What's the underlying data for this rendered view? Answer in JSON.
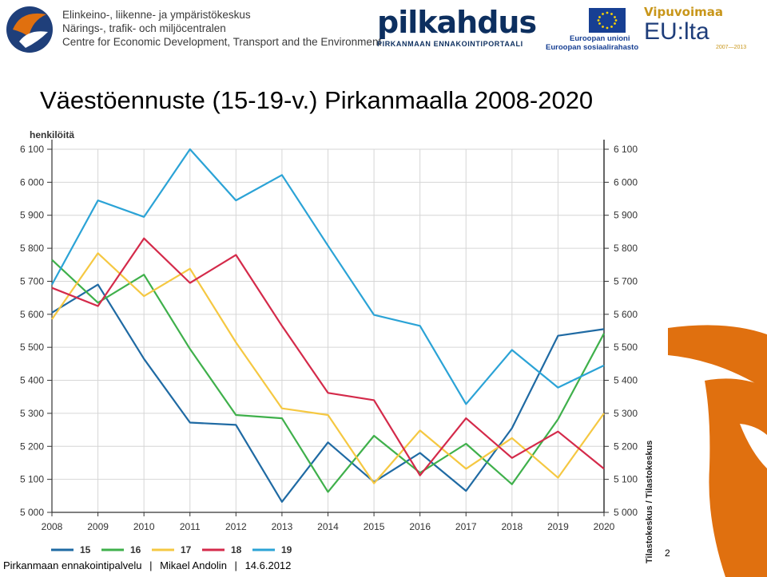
{
  "header": {
    "ely_lines": [
      "Elinkeino-, liikenne- ja ympäristökeskus",
      "Närings-, trafik- och miljöcentralen",
      "Centre for Economic Development, Transport and the Environment"
    ],
    "pilkahdus_name": "pilkahdus",
    "pilkahdus_sub": "PIRKANMAAN ENNAKOINTIPORTAALI",
    "eu_lines": [
      "Euroopan unioni",
      "Euroopan sosiaalirahasto"
    ],
    "vipuvoimaa": "Vipuvoimaa",
    "eulta": "EU:lta",
    "years": "2007—2013"
  },
  "title": "Väestöennuste (15-19-v.) Pirkanmaalla 2008-2020",
  "footer": {
    "org": "Pirkanmaan ennakointipalvelu",
    "sep1": "|",
    "author": "Mikael Andolin",
    "sep2": "|",
    "date": "14.6.2012"
  },
  "page_number": "2",
  "colors": {
    "s15": "#1f6aa3",
    "s16": "#3fb04b",
    "s17": "#f5c842",
    "s18": "#d42a4a",
    "s19": "#2ba3d6",
    "orange": "#e0700f"
  },
  "chart_data": {
    "type": "line",
    "ylabel": "henkilöitä",
    "source": "Tilastokeskus / Tilastokeskus",
    "ylim": [
      5000,
      6100
    ],
    "y_ticks": [
      "5 000",
      "5 100",
      "5 200",
      "5 300",
      "5 400",
      "5 500",
      "5 600",
      "5 700",
      "5 800",
      "5 900",
      "6 000",
      "6 100"
    ],
    "x": [
      "2008",
      "2009",
      "2010",
      "2011",
      "2012",
      "2013",
      "2014",
      "2015",
      "2016",
      "2017",
      "2018",
      "2019",
      "2020"
    ],
    "legend_position": "bottom-left",
    "grid": true,
    "series": [
      {
        "name": "15",
        "color": "#1f6aa3",
        "values": [
          5605,
          5690,
          5465,
          5272,
          5265,
          5032,
          5212,
          5092,
          5180,
          5065,
          5255,
          5535,
          5555
        ]
      },
      {
        "name": "16",
        "color": "#3fb04b",
        "values": [
          5765,
          5635,
          5720,
          5495,
          5295,
          5285,
          5062,
          5232,
          5120,
          5208,
          5085,
          5282,
          5542
        ]
      },
      {
        "name": "17",
        "color": "#f5c842",
        "values": [
          5585,
          5785,
          5655,
          5738,
          5515,
          5315,
          5295,
          5088,
          5248,
          5132,
          5225,
          5105,
          5300
        ]
      },
      {
        "name": "18",
        "color": "#d42a4a",
        "values": [
          5680,
          5625,
          5830,
          5695,
          5780,
          5565,
          5362,
          5340,
          5112,
          5285,
          5165,
          5245,
          5132
        ]
      },
      {
        "name": "19",
        "color": "#2ba3d6",
        "values": [
          5690,
          5945,
          5895,
          6100,
          5945,
          6022,
          5808,
          5598,
          5565,
          5328,
          5492,
          5378,
          5445
        ]
      }
    ]
  }
}
